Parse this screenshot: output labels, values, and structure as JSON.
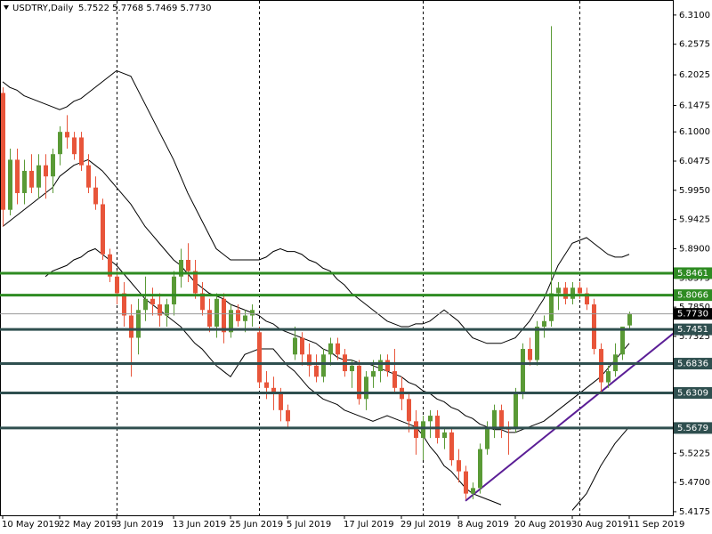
{
  "chart_data": {
    "type": "candlestick",
    "title": "USDTRY,Daily",
    "ohlc_label": "5.7522 5.7768 5.7469 5.7730",
    "up_color": "#5a9a36",
    "down_color": "#e8553a",
    "categories": [
      "10 May 2019",
      null,
      null,
      null,
      null,
      null,
      null,
      null,
      "22 May 2019",
      null,
      null,
      null,
      null,
      null,
      null,
      null,
      "3 Jun 2019",
      null,
      null,
      null,
      null,
      null,
      null,
      null,
      "13 Jun 2019",
      null,
      null,
      null,
      null,
      null,
      null,
      null,
      "25 Jun 2019",
      null,
      null,
      null,
      null,
      null,
      null,
      null,
      "5 Jul 2019",
      null,
      null,
      null,
      null,
      null,
      null,
      null,
      "17 Jul 2019",
      null,
      null,
      null,
      null,
      null,
      null,
      null,
      "29 Jul 2019",
      null,
      null,
      null,
      null,
      null,
      null,
      null,
      "8 Aug 2019",
      null,
      null,
      null,
      null,
      null,
      null,
      null,
      "20 Aug 2019",
      null,
      null,
      null,
      null,
      null,
      null,
      null,
      "30 Aug 2019",
      null,
      null,
      null,
      null,
      null,
      null,
      null,
      "11 Sep 2019"
    ],
    "open": [
      6.17,
      5.96,
      6.05,
      5.99,
      6.03,
      6.0,
      6.04,
      6.02,
      6.06,
      6.1,
      6.09,
      6.09,
      6.04,
      6.0,
      5.97,
      5.88,
      5.84,
      5.81,
      5.77,
      5.73,
      5.78,
      5.8,
      5.79,
      5.77,
      5.79,
      5.84,
      5.87,
      5.85,
      5.81,
      5.78,
      5.75,
      5.8,
      5.74,
      5.78,
      5.76,
      5.77,
      5.74,
      5.65,
      5.64,
      5.63,
      5.6,
      5.7,
      5.73,
      5.7,
      5.68,
      5.66,
      5.7,
      5.72,
      5.7,
      5.67,
      5.68,
      5.62,
      5.66,
      5.67,
      5.69,
      5.67,
      5.64,
      5.62,
      5.58,
      5.55,
      5.58,
      5.59,
      5.55,
      5.56,
      5.51,
      5.49,
      5.45,
      5.46,
      5.53,
      5.57,
      5.6,
      5.57,
      5.57,
      5.63,
      5.71,
      5.69,
      5.75,
      5.76,
      5.81,
      5.82,
      5.8,
      5.82,
      5.81,
      5.79,
      5.71,
      5.65,
      5.67,
      5.7,
      5.7522
    ],
    "high": [
      6.18,
      6.07,
      6.07,
      6.05,
      6.06,
      6.06,
      6.06,
      6.07,
      6.11,
      6.13,
      6.1,
      6.1,
      6.06,
      6.02,
      5.98,
      5.89,
      5.85,
      5.83,
      5.79,
      5.8,
      5.84,
      5.82,
      5.81,
      5.8,
      5.85,
      5.89,
      5.9,
      5.87,
      5.83,
      5.8,
      5.81,
      5.81,
      5.79,
      5.79,
      5.78,
      5.79,
      5.75,
      5.67,
      5.66,
      5.64,
      5.61,
      5.75,
      5.74,
      5.72,
      5.7,
      5.71,
      5.73,
      5.73,
      5.71,
      5.69,
      5.69,
      5.67,
      5.69,
      5.7,
      5.7,
      5.71,
      5.66,
      5.63,
      5.6,
      5.59,
      5.6,
      5.6,
      5.57,
      5.57,
      5.53,
      5.5,
      5.47,
      5.54,
      5.58,
      5.61,
      5.61,
      5.58,
      5.64,
      5.72,
      5.73,
      5.76,
      5.77,
      6.29,
      5.83,
      5.83,
      5.83,
      5.83,
      5.82,
      5.8,
      5.72,
      5.68,
      5.72,
      5.75,
      5.7768
    ],
    "low": [
      5.93,
      5.95,
      5.97,
      5.97,
      5.99,
      5.98,
      5.98,
      5.99,
      6.04,
      6.07,
      6.05,
      6.03,
      5.99,
      5.96,
      5.87,
      5.83,
      5.79,
      5.75,
      5.66,
      5.7,
      5.76,
      5.77,
      5.75,
      5.75,
      5.77,
      5.82,
      5.83,
      5.8,
      5.77,
      5.74,
      5.73,
      5.72,
      5.73,
      5.75,
      5.74,
      5.75,
      5.64,
      5.62,
      5.6,
      5.58,
      5.57,
      5.69,
      5.68,
      5.66,
      5.65,
      5.65,
      5.68,
      5.69,
      5.66,
      5.64,
      5.61,
      5.6,
      5.64,
      5.65,
      5.66,
      5.63,
      5.6,
      5.56,
      5.52,
      5.51,
      5.55,
      5.54,
      5.53,
      5.5,
      5.47,
      5.44,
      5.44,
      5.45,
      5.52,
      5.55,
      5.55,
      5.52,
      5.56,
      5.62,
      5.68,
      5.68,
      5.73,
      5.75,
      5.78,
      5.79,
      5.79,
      5.8,
      5.78,
      5.7,
      5.63,
      5.64,
      5.66,
      5.69,
      5.7469
    ],
    "close": [
      5.96,
      6.05,
      5.99,
      6.03,
      6.0,
      6.04,
      6.02,
      6.06,
      6.1,
      6.09,
      6.06,
      6.04,
      6.0,
      5.97,
      5.88,
      5.84,
      5.81,
      5.77,
      5.73,
      5.78,
      5.8,
      5.79,
      5.77,
      5.79,
      5.84,
      5.87,
      5.85,
      5.81,
      5.78,
      5.75,
      5.8,
      5.74,
      5.78,
      5.76,
      5.77,
      5.78,
      5.65,
      5.64,
      5.63,
      5.6,
      5.58,
      5.73,
      5.7,
      5.68,
      5.66,
      5.7,
      5.72,
      5.7,
      5.67,
      5.68,
      5.62,
      5.66,
      5.67,
      5.69,
      5.67,
      5.64,
      5.62,
      5.58,
      5.55,
      5.58,
      5.59,
      5.55,
      5.56,
      5.51,
      5.49,
      5.45,
      5.46,
      5.53,
      5.57,
      5.6,
      5.57,
      5.565,
      5.63,
      5.71,
      5.69,
      5.75,
      5.76,
      5.81,
      5.82,
      5.8,
      5.82,
      5.81,
      5.79,
      5.71,
      5.65,
      5.67,
      5.7,
      5.75,
      5.773
    ],
    "bands": {
      "color": "#000000",
      "upper": [
        6.19,
        6.18,
        6.175,
        6.165,
        6.16,
        6.155,
        6.15,
        6.145,
        6.14,
        6.145,
        6.155,
        6.16,
        6.17,
        6.18,
        6.19,
        6.2,
        6.21,
        6.205,
        6.2,
        6.175,
        6.15,
        6.125,
        6.1,
        6.075,
        6.05,
        6.02,
        5.99,
        5.965,
        5.94,
        5.915,
        5.89,
        5.88,
        5.87,
        5.87,
        5.87,
        5.87,
        5.87,
        5.875,
        5.885,
        5.89,
        5.885,
        5.885,
        5.88,
        5.87,
        5.865,
        5.855,
        5.85,
        5.835,
        5.825,
        5.81,
        5.8,
        5.79,
        5.78,
        5.77,
        5.76,
        5.755,
        5.75,
        5.75,
        5.755,
        5.755,
        5.76,
        5.77,
        5.78,
        5.77,
        5.76,
        5.745,
        5.73,
        5.725,
        5.72,
        5.72,
        5.72,
        5.725,
        5.73,
        5.745,
        5.76,
        5.78,
        5.8,
        5.83,
        5.86,
        5.88,
        5.9,
        5.905,
        5.91,
        5.9,
        5.89,
        5.88,
        5.875,
        5.875,
        5.88
      ],
      "middle": [
        5.93,
        5.94,
        5.95,
        5.96,
        5.97,
        5.98,
        5.99,
        6.0,
        6.02,
        6.03,
        6.04,
        6.045,
        6.05,
        6.04,
        6.03,
        6.015,
        6.0,
        5.985,
        5.97,
        5.95,
        5.93,
        5.915,
        5.9,
        5.885,
        5.87,
        5.86,
        5.845,
        5.83,
        5.82,
        5.81,
        5.805,
        5.8,
        5.79,
        5.785,
        5.78,
        5.775,
        5.77,
        5.76,
        5.755,
        5.745,
        5.74,
        5.735,
        5.73,
        5.725,
        5.72,
        5.71,
        5.705,
        5.695,
        5.69,
        5.69,
        5.685,
        5.685,
        5.68,
        5.675,
        5.67,
        5.665,
        5.66,
        5.65,
        5.645,
        5.635,
        5.63,
        5.62,
        5.615,
        5.605,
        5.6,
        5.59,
        5.585,
        5.575,
        5.57,
        5.565,
        5.565,
        5.56,
        5.56,
        5.565,
        5.57,
        5.575,
        5.58,
        5.59,
        5.6,
        5.61,
        5.62,
        5.63,
        5.64,
        5.65,
        5.66,
        5.675,
        5.69,
        5.705,
        5.72
      ],
      "lower": [
        null,
        null,
        null,
        null,
        null,
        null,
        5.84,
        5.85,
        5.855,
        5.86,
        5.87,
        5.875,
        5.885,
        5.89,
        5.88,
        5.87,
        5.86,
        5.845,
        5.83,
        5.815,
        5.8,
        5.79,
        5.78,
        5.77,
        5.76,
        5.75,
        5.735,
        5.72,
        5.71,
        5.695,
        5.68,
        5.67,
        5.66,
        5.68,
        5.7,
        5.705,
        5.71,
        5.71,
        5.71,
        5.695,
        5.68,
        5.67,
        5.655,
        5.64,
        5.63,
        5.62,
        5.615,
        5.61,
        5.6,
        5.595,
        5.59,
        5.585,
        5.58,
        5.585,
        5.59,
        5.585,
        5.58,
        5.575,
        5.57,
        5.555,
        5.535,
        5.52,
        5.5,
        5.49,
        5.475,
        5.46,
        5.45,
        5.445,
        5.44,
        5.435,
        5.43,
        null,
        null,
        null,
        null,
        null,
        null,
        null,
        null,
        null,
        5.42,
        5.435,
        5.45,
        5.475,
        5.5,
        5.52,
        5.54,
        5.555,
        5.57
      ]
    },
    "trendline": {
      "color": "#5b1e96",
      "x": [
        65,
        94.6
      ],
      "values": [
        5.437,
        5.742
      ]
    },
    "levels": [
      {
        "value": 5.8461,
        "color": "#2e8b22"
      },
      {
        "value": 5.8066,
        "color": "#2e8b22"
      },
      {
        "value": 5.7451,
        "color": "#2f4f4f"
      },
      {
        "value": 5.6836,
        "color": "#2f4f4f"
      },
      {
        "value": 5.6309,
        "color": "#2f4f4f"
      },
      {
        "value": 5.5679,
        "color": "#2f4f4f"
      }
    ],
    "current_price": {
      "value": 5.773,
      "label": "5.7730",
      "color": "#000000"
    },
    "ylim": [
      5.411,
      6.329
    ],
    "yticks": [
      {
        "value": 6.31,
        "label": "6.3100"
      },
      6.2575,
      6.2025,
      6.1475,
      {
        "value": 6.1,
        "label": "6.1000"
      },
      6.0475,
      {
        "value": 5.995,
        "label": "5.9950"
      },
      5.9425,
      {
        "value": 5.89,
        "label": "5.8900"
      },
      5.8375,
      {
        "value": 5.785,
        "label": "5.7850"
      },
      5.7325,
      5.5225,
      {
        "value": 5.47,
        "label": "5.4700"
      },
      5.4175
    ]
  }
}
